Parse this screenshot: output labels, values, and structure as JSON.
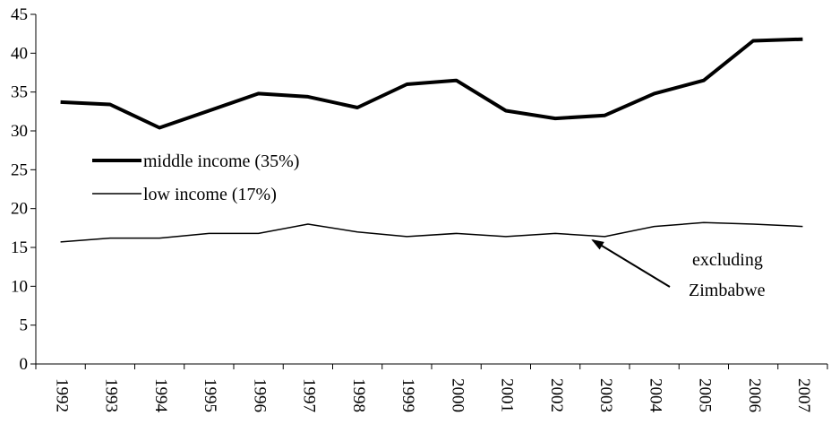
{
  "chart_data": {
    "type": "line",
    "title": "",
    "xlabel": "",
    "ylabel": "",
    "ylim": [
      0,
      45
    ],
    "yticks": [
      0,
      5,
      10,
      15,
      20,
      25,
      30,
      35,
      40,
      45
    ],
    "grid": false,
    "categories": [
      "1992",
      "1993",
      "1994",
      "1995",
      "1996",
      "1997",
      "1998",
      "1999",
      "2000",
      "2001",
      "2002",
      "2003",
      "2004",
      "2005",
      "2006",
      "2007"
    ],
    "series": [
      {
        "name": "middle income (35%)",
        "color": "#000000",
        "line_weight": "heavy",
        "values": [
          33.7,
          33.4,
          30.4,
          32.6,
          34.8,
          34.4,
          33.0,
          36.0,
          36.5,
          32.6,
          31.6,
          32.0,
          34.8,
          36.5,
          41.6,
          41.8
        ]
      },
      {
        "name": "low income (17%)",
        "color": "#000000",
        "line_weight": "thin",
        "values": [
          15.7,
          16.2,
          16.2,
          16.8,
          16.8,
          18.0,
          17.0,
          16.4,
          16.8,
          16.4,
          16.8,
          16.4,
          17.7,
          18.2,
          18.0,
          17.7
        ]
      }
    ],
    "legend_position": "left-middle",
    "annotation": {
      "lines": [
        "excluding",
        "Zimbabwe"
      ],
      "points_to_series": "low income (17%)",
      "points_to_category": "2002"
    }
  }
}
